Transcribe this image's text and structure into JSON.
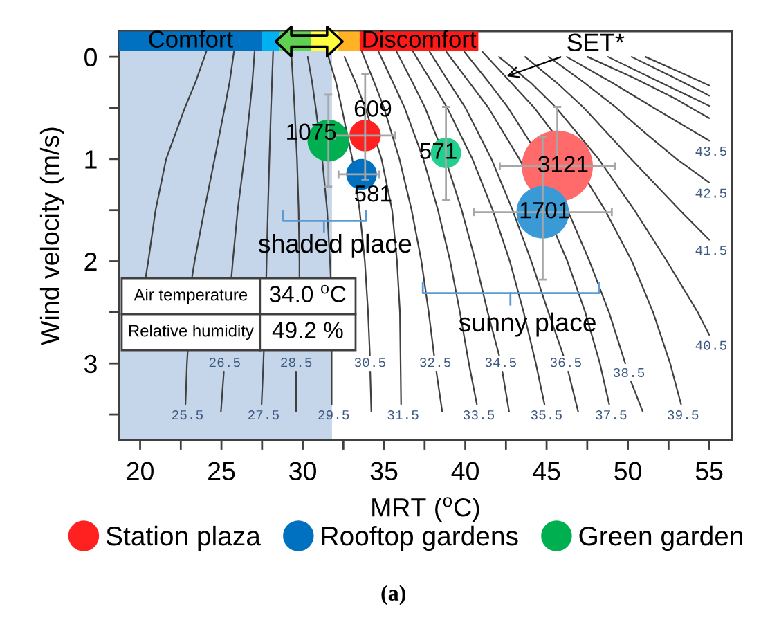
{
  "chart_data": {
    "type": "bubble",
    "xlabel": "MRT ($^{o}$C)",
    "ylabel": "Wind velocity (m/s)",
    "xlim": [
      18.7,
      56.4
    ],
    "ylim": [
      3.75,
      -0.25
    ],
    "xticks": [
      20,
      {
        "value": 22.5,
        "label": null
      },
      25,
      {
        "value": 27.5,
        "label": null
      },
      30,
      {
        "value": 32.5,
        "label": null
      },
      35,
      {
        "value": 37.5,
        "label": null
      },
      40,
      {
        "value": 42.5,
        "label": null
      },
      45,
      {
        "value": 47.5,
        "label": null
      },
      50,
      {
        "value": 52.5,
        "label": null
      },
      55
    ],
    "yticks": [
      0,
      {
        "value": 0.5,
        "label": null
      },
      1,
      {
        "value": 1.5,
        "label": null
      },
      2,
      {
        "value": 2.5,
        "label": null
      },
      3,
      {
        "value": 3.5,
        "label": null
      }
    ],
    "legend": "bottom",
    "series": [
      {
        "name": "Station plaza",
        "color": "#ff2020",
        "colors": [
          "#ff2020",
          "#ff6a6a"
        ],
        "x": [
          33.84,
          45.66
        ],
        "values": [
          0.77,
          1.07
        ],
        "sizes": [
          609,
          3121
        ],
        "value_labels": [
          "609",
          "3121"
        ],
        "errors": [
          [
            0.17,
            1.2
          ],
          [
            0.49,
            1.07
          ]
        ],
        "xerrors": [
          [
            32.0,
            35.7
          ],
          [
            42.12,
            49.2
          ]
        ]
      },
      {
        "name": "Rooftop gardens",
        "color": "#0070c0",
        "colors": [
          "#0070c0",
          "#3a9ad6"
        ],
        "x": [
          33.62,
          44.76
        ],
        "values": [
          1.15,
          1.52
        ],
        "sizes": [
          581,
          1701
        ],
        "value_labels": [
          "581",
          "1701"
        ],
        "errors": [
          null,
          [
            0.78,
            2.18
          ]
        ],
        "xerrors": [
          [
            32.2,
            34.7
          ],
          [
            40.51,
            49.01
          ]
        ]
      },
      {
        "name": "Green garden",
        "color": "#00b050",
        "colors": [
          "#00b050",
          "#22cf8e"
        ],
        "x": [
          31.58,
          38.81
        ],
        "values": [
          0.82,
          0.94
        ],
        "sizes": [
          1075,
          571
        ],
        "value_labels": [
          "1075",
          "571"
        ],
        "errors": [
          [
            0.37,
            1.27
          ],
          [
            0.49,
            1.4
          ]
        ],
        "xerrors": [
          null,
          null
        ]
      },
      {
        "type": "line",
        "color": "#404040",
        "x": [
          24.07,
          23.4,
          22.75,
          21.6,
          20.95,
          20.5,
          20.35
        ],
        "values": [
          -0.05,
          0.25,
          0.5,
          1,
          1.5,
          2,
          2.15
        ]
      },
      {
        "type": "line",
        "name": "25.5",
        "color": "#404040",
        "x": [
          25.77,
          25.5,
          25.2,
          24.58,
          23.95,
          23.35,
          23.2,
          null,
          22.93,
          22.88,
          22.79
        ],
        "values": [
          -0.05,
          0.25,
          0.5,
          1,
          1.5,
          2,
          2.15,
          null,
          2.87,
          3,
          3.4
        ]
      },
      {
        "type": "line",
        "name": "26.5",
        "color": "#404040",
        "x": [
          27.04,
          26.9,
          26.75,
          26.4,
          26.0,
          25.7,
          25.62,
          25.2,
          25.15,
          24.97
        ],
        "values": [
          -0.05,
          0.25,
          0.5,
          1,
          1.5,
          2,
          2.15,
          null,
          3.08,
          3.47
        ]
      },
      {
        "type": "line",
        "name": "27.5",
        "color": "#404040",
        "x": [
          28.18,
          28.11,
          28.05,
          27.95,
          27.86,
          27.78,
          27.76,
          null,
          27.61,
          27.58,
          27.47
        ],
        "values": [
          -0.05,
          0.25,
          0.5,
          1,
          1.5,
          2,
          2.15,
          null,
          2.87,
          3,
          3.4
        ]
      },
      {
        "type": "line",
        "name": "28.5",
        "color": "#404040",
        "x": [
          29.31,
          29.41,
          29.5,
          29.65,
          29.75,
          29.8,
          29.8,
          29.6,
          29.59,
          29.59
        ],
        "values": [
          0,
          0.25,
          0.5,
          1,
          1.5,
          2,
          2.15,
          null,
          3.08,
          3.47
        ]
      },
      {
        "type": "line",
        "name": "29.5",
        "color": "#404040",
        "x": [
          30.31,
          30.58,
          30.8,
          31.2,
          31.5,
          31.68,
          31.72,
          null,
          31.78,
          31.78
        ],
        "values": [
          0,
          0.25,
          0.5,
          1,
          1.5,
          2,
          2.15,
          null,
          2.87,
          3.4
        ]
      },
      {
        "type": "line",
        "name": "30.5",
        "color": "#404040",
        "x": [
          31.58,
          32.05,
          32.4,
          33.05,
          33.5,
          33.82,
          34.02,
          34.13,
          34.14,
          34.15,
          34.22
        ],
        "values": [
          0,
          0.25,
          0.5,
          1,
          1.5,
          2,
          2.5,
          2.92,
          null,
          3.08,
          3.47
        ]
      },
      {
        "type": "line",
        "name": "31.5",
        "color": "#404040",
        "x": [
          32.57,
          33.25,
          33.85,
          34.85,
          35.5,
          35.8,
          35.98,
          36.02,
          36.05
        ],
        "values": [
          0,
          0.25,
          0.5,
          1,
          1.5,
          2,
          2.5,
          3,
          3.4
        ]
      },
      {
        "type": "line",
        "name": "32.5",
        "color": "#404040",
        "x": [
          33.64,
          34.4,
          35.0,
          35.95,
          36.7,
          37.3,
          37.75,
          38.08,
          38.15,
          38.22,
          38.58
        ],
        "values": [
          -0.05,
          0.25,
          0.5,
          1,
          1.5,
          2,
          2.5,
          2.92,
          null,
          3.08,
          3.47
        ]
      },
      {
        "type": "line",
        "name": "33.5",
        "color": "#404040",
        "x": [
          34.67,
          35.55,
          36.27,
          37.42,
          38.32,
          39.07,
          39.67,
          40.22,
          40.71
        ],
        "values": [
          -0.05,
          0.25,
          0.5,
          1,
          1.5,
          2,
          2.5,
          3,
          3.4
        ]
      },
      {
        "type": "line",
        "name": "34.5",
        "color": "#404040",
        "x": [
          35.78,
          36.75,
          37.53,
          38.78,
          39.78,
          40.63,
          41.38,
          42.08,
          42.18,
          42.28,
          42.69
        ],
        "values": [
          -0.05,
          0.25,
          0.5,
          1,
          1.5,
          2,
          2.5,
          2.92,
          null,
          3.08,
          3.47
        ]
      },
      {
        "type": "line",
        "name": "35.5",
        "color": "#404040",
        "x": [
          36.79,
          37.95,
          38.89,
          40.44,
          41.69,
          42.74,
          43.59,
          44.34,
          44.87
        ],
        "values": [
          -0.05,
          0.25,
          0.5,
          1,
          1.5,
          2,
          2.5,
          3,
          3.4
        ]
      },
      {
        "type": "line",
        "name": "36.5",
        "color": "#404040",
        "x": [
          37.81,
          39.0,
          40.01,
          41.61,
          42.91,
          44.06,
          45.11,
          46.03,
          46.18,
          46.33,
          46.94
        ],
        "values": [
          -0.05,
          0.25,
          0.5,
          1,
          1.5,
          2,
          2.5,
          2.92,
          null,
          3.08,
          3.47
        ]
      },
      {
        "type": "line",
        "name": "37.5",
        "color": "#404040",
        "x": [
          38.83,
          40.25,
          41.43,
          43.33,
          44.93,
          46.28,
          47.38,
          48.28,
          48.85
        ],
        "values": [
          -0.05,
          0.25,
          0.5,
          1,
          1.5,
          2,
          2.5,
          3,
          3.4
        ]
      },
      {
        "type": "line",
        "name": "38.5",
        "color": "#404040",
        "x": [
          39.94,
          41.45,
          42.64,
          44.64,
          46.29,
          47.64,
          48.84,
          49.84,
          50.06,
          50.2,
          50.91
        ],
        "values": [
          -0.05,
          0.25,
          0.5,
          1,
          1.5,
          2,
          2.5,
          3,
          null,
          3.18,
          3.47
        ]
      },
      {
        "type": "line",
        "name": "39.5",
        "color": "#404040",
        "x": [
          41.05,
          42.8,
          44.25,
          46.65,
          48.6,
          50.25,
          51.55,
          52.6,
          53.27
        ],
        "values": [
          -0.05,
          0.25,
          0.5,
          1,
          1.5,
          2,
          2.5,
          3,
          3.4
        ]
      },
      {
        "type": "line",
        "name": "40.5",
        "color": "#404040",
        "x": [
          42.07,
          44.0,
          45.6,
          48.2,
          50.4,
          52.4,
          54.3,
          55.0
        ],
        "values": [
          0,
          0.25,
          0.5,
          1,
          1.5,
          2,
          2.5,
          2.72
        ]
      },
      {
        "type": "line",
        "name": "41.5",
        "color": "#404040",
        "x": [
          43.68,
          45.6,
          47.3,
          50.2,
          53.2,
          55.0
        ],
        "values": [
          0,
          0.25,
          0.5,
          1,
          1.5,
          1.79
        ]
      },
      {
        "type": "line",
        "name": "42.5",
        "color": "#404040",
        "x": [
          45.13,
          47.3,
          49.3,
          51.1,
          53.0,
          55.0
        ],
        "values": [
          0,
          0.25,
          0.5,
          0.75,
          1,
          1.23
        ]
      },
      {
        "type": "line",
        "name": "43.5",
        "color": "#404040",
        "x": [
          46.24,
          49.0,
          51.6,
          55.0
        ],
        "values": [
          0,
          0.25,
          0.5,
          0.82
        ]
      },
      {
        "type": "line",
        "color": "#404040",
        "x": [
          47.52,
          50.3,
          52.8,
          55.0
        ],
        "values": [
          0,
          0.2,
          0.4,
          0.6
        ]
      },
      {
        "type": "line",
        "color": "#404040",
        "x": [
          48.78,
          52.0,
          55.0
        ],
        "values": [
          0,
          0.25,
          0.48
        ]
      },
      {
        "type": "line",
        "color": "#404040",
        "x": [
          50.23,
          52.8,
          55.0
        ],
        "values": [
          0,
          0.2,
          0.38
        ]
      },
      {
        "type": "line",
        "color": "#404040",
        "x": [
          51.08,
          53.2,
          55.0
        ],
        "values": [
          0,
          0.15,
          0.28
        ]
      }
    ],
    "bands": [
      {
        "axis": "x",
        "from": 18.7,
        "to": 31.8,
        "color": "#c5d6ea"
      },
      {
        "axis": "x",
        "from": 18.7,
        "to": 27.5,
        "color": "#0070c0",
        "label": "Comfort"
      },
      {
        "axis": "x",
        "from": 27.5,
        "to": 28.6,
        "color": "#00b0f0"
      },
      {
        "axis": "x",
        "from": 28.6,
        "to": 30.5,
        "color": "#5fd04f"
      },
      {
        "axis": "x",
        "from": 30.5,
        "to": 32.2,
        "color": "#ffff40"
      },
      {
        "axis": "x",
        "from": 32.2,
        "to": 33.5,
        "color": "#ffb224"
      },
      {
        "axis": "x",
        "from": 33.5,
        "to": 40.8,
        "color": "#ff1a1a",
        "label": "Discomfort"
      }
    ],
    "annotations": [
      "Air temperature",
      "34.0 $^{o}$C",
      "Relative humidity",
      "49.2 %",
      {
        "text": "shaded place",
        "x": 31.99,
        "y": 1.85
      },
      {
        "text": "sunny place",
        "x": 43.83,
        "y": 2.62
      },
      {
        "text": "SET*",
        "x": 42.55,
        "y": 0.19
      },
      "(a)"
    ]
  }
}
